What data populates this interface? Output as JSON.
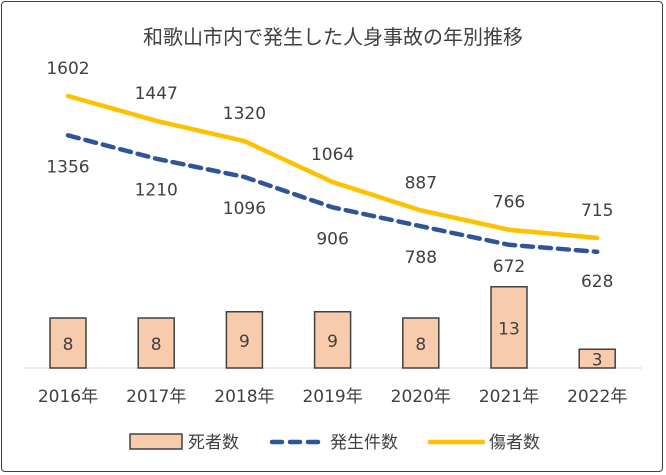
{
  "chart_data": {
    "type": "bar+line",
    "title": "和歌山市内で発生した人身事故の年別推移",
    "categories": [
      "2016年",
      "2017年",
      "2018年",
      "2019年",
      "2020年",
      "2021年",
      "2022年"
    ],
    "series": [
      {
        "name": "死者数",
        "type": "bar",
        "axis": "secondary",
        "values": [
          8,
          8,
          9,
          9,
          8,
          13,
          3
        ],
        "color": "#F8CBAD",
        "border": "#404040"
      },
      {
        "name": "発生件数",
        "type": "line",
        "style": "dashed",
        "values": [
          1356,
          1210,
          1096,
          906,
          788,
          672,
          628
        ],
        "color": "#2F5597"
      },
      {
        "name": "傷者数",
        "type": "line",
        "style": "solid",
        "values": [
          1602,
          1447,
          1320,
          1064,
          887,
          766,
          715
        ],
        "color": "#FFC000"
      }
    ],
    "legend": "bottom",
    "grid": false
  }
}
